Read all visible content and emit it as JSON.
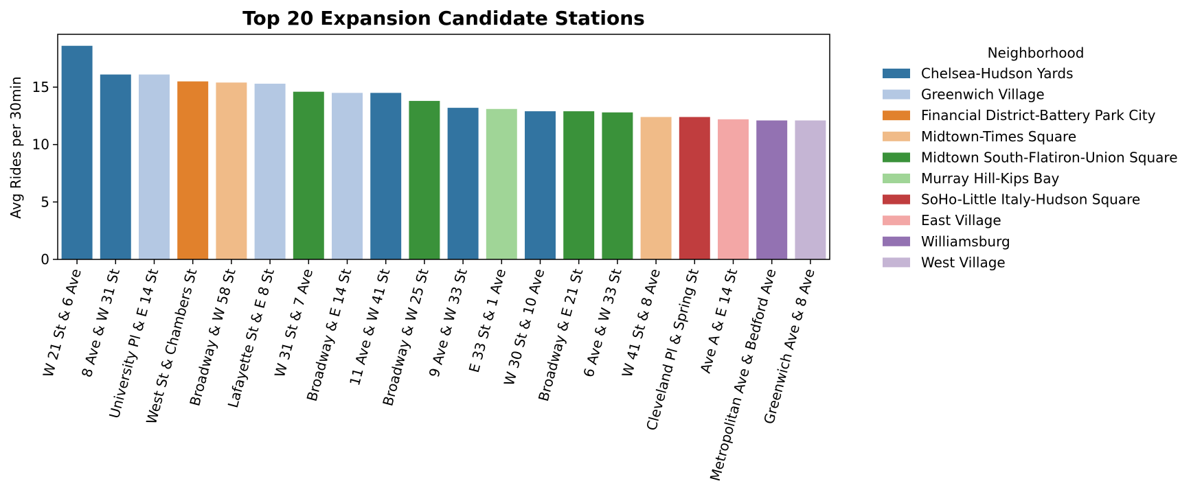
{
  "chart_data": {
    "type": "bar",
    "title": "Top 20 Expansion Candidate Stations",
    "xlabel": "",
    "ylabel": "Avg Rides per 30min",
    "ylim": [
      0,
      19.6
    ],
    "yticks": [
      0,
      5,
      10,
      15
    ],
    "grid": false,
    "legend": {
      "title": "Neighborhood",
      "placement": "outside-right",
      "entries": [
        {
          "name": "Chelsea-Hudson Yards",
          "color": "#3274a1"
        },
        {
          "name": "Greenwich Village",
          "color": "#b4c8e3"
        },
        {
          "name": "Financial District-Battery Park City",
          "color": "#e1812c"
        },
        {
          "name": "Midtown-Times Square",
          "color": "#f0bb88"
        },
        {
          "name": "Midtown South-Flatiron-Union Square",
          "color": "#3a923a"
        },
        {
          "name": "Murray Hill-Kips Bay",
          "color": "#a0d597"
        },
        {
          "name": "SoHo-Little Italy-Hudson Square",
          "color": "#c03d3e"
        },
        {
          "name": "East Village",
          "color": "#f3a7a6"
        },
        {
          "name": "Williamsburg",
          "color": "#9372b2"
        },
        {
          "name": "West Village",
          "color": "#c5b5d4"
        }
      ]
    },
    "categories": [
      "W 21 St & 6 Ave",
      "8 Ave & W 31 St",
      "University Pl & E 14 St",
      "West St & Chambers St",
      "Broadway & W 58 St",
      "Lafayette St & E 8 St",
      "W 31 St & 7 Ave",
      "Broadway & E 14 St",
      "11 Ave & W 41 St",
      "Broadway & W 25 St",
      "9 Ave & W 33 St",
      "E 33 St & 1 Ave",
      "W 30 St & 10 Ave",
      "Broadway & E 21 St",
      "6 Ave & W 33 St",
      "W 41 St & 8 Ave",
      "Cleveland Pl & Spring St",
      "Ave A & E 14 St",
      "Metropolitan Ave & Bedford Ave",
      "Greenwich Ave & 8 Ave"
    ],
    "values": [
      18.6,
      16.1,
      16.1,
      15.5,
      15.4,
      15.3,
      14.6,
      14.5,
      14.5,
      13.8,
      13.2,
      13.1,
      12.9,
      12.9,
      12.8,
      12.4,
      12.4,
      12.2,
      12.1,
      12.1
    ],
    "hue": [
      "Chelsea-Hudson Yards",
      "Chelsea-Hudson Yards",
      "Greenwich Village",
      "Financial District-Battery Park City",
      "Midtown-Times Square",
      "Greenwich Village",
      "Midtown South-Flatiron-Union Square",
      "Greenwich Village",
      "Chelsea-Hudson Yards",
      "Midtown South-Flatiron-Union Square",
      "Chelsea-Hudson Yards",
      "Murray Hill-Kips Bay",
      "Chelsea-Hudson Yards",
      "Midtown South-Flatiron-Union Square",
      "Midtown South-Flatiron-Union Square",
      "Midtown-Times Square",
      "SoHo-Little Italy-Hudson Square",
      "East Village",
      "Williamsburg",
      "West Village"
    ]
  }
}
